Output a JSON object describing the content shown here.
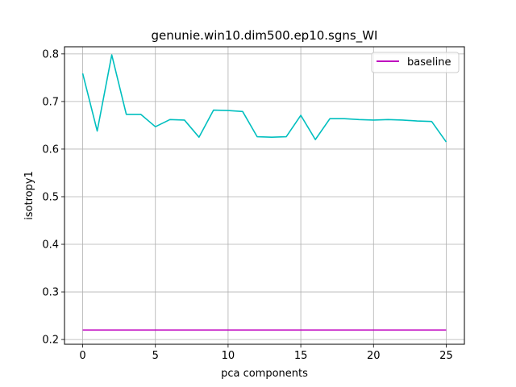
{
  "chart_data": {
    "type": "line",
    "title": "genunie.win10.dim500.ep10.sgns_WI",
    "xlabel": "pca components",
    "ylabel": "isotropy1",
    "xlim": [
      -1.25,
      26.25
    ],
    "ylim": [
      0.19,
      0.815
    ],
    "xticks": [
      0,
      5,
      10,
      15,
      20,
      25
    ],
    "yticks": [
      0.2,
      0.3,
      0.4,
      0.5,
      0.6,
      0.7,
      0.8
    ],
    "grid": true,
    "legend_position": "top-right",
    "series": [
      {
        "color": "#00bfbf",
        "x": [
          0,
          1,
          2,
          3,
          4,
          5,
          6,
          7,
          8,
          9,
          10,
          11,
          12,
          13,
          14,
          15,
          16,
          17,
          18,
          19,
          20,
          21,
          22,
          23,
          24,
          25
        ],
        "y": [
          0.759,
          0.638,
          0.798,
          0.673,
          0.673,
          0.647,
          0.662,
          0.661,
          0.625,
          0.682,
          0.681,
          0.679,
          0.626,
          0.625,
          0.626,
          0.671,
          0.62,
          0.664,
          0.664,
          0.662,
          0.661,
          0.662,
          0.661,
          0.659,
          0.658,
          0.615
        ]
      },
      {
        "name": "baseline",
        "color": "#bf00bf",
        "x": [
          0,
          25
        ],
        "y": [
          0.22,
          0.22
        ]
      }
    ]
  }
}
